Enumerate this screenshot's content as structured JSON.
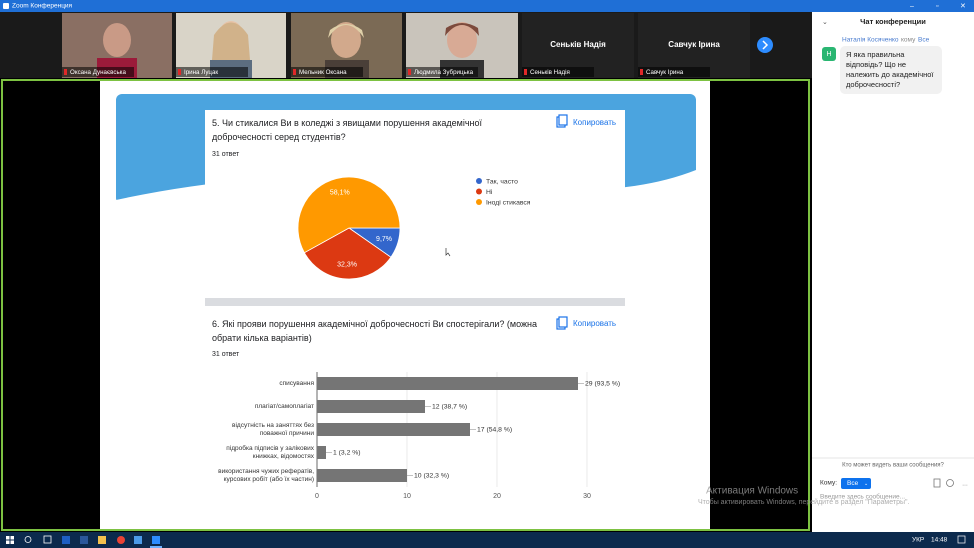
{
  "window_title": "Zoom Конференция",
  "participants": [
    {
      "name": "Оксана Дунаєвська"
    },
    {
      "name": "Ірина Луцак"
    },
    {
      "name": "Мельник Оксана"
    },
    {
      "name": "Людмила Зубрицька"
    },
    {
      "name": "Сеньків Надія"
    },
    {
      "name": "Савчук Ірина"
    }
  ],
  "questions": [
    {
      "title": "5. Чи стикалися Ви в коледжі з явищами порушення академічної доброчесності серед студентів?",
      "responses": "31 ответ",
      "copy_button": "Копировать",
      "chart": {
        "type": "pie",
        "categories": [
          "Так, часто",
          "Ні",
          "Іноді стикався"
        ],
        "values": [
          9.7,
          32.3,
          58.1
        ],
        "value_labels": [
          "9,7%",
          "32,3%",
          "58,1%"
        ],
        "colors": [
          "#3366cc",
          "#dc3912",
          "#ff9900"
        ]
      }
    },
    {
      "title": "6. Які прояви порушення академічної доброчесності Ви спостерігали? (можна обрати кілька варіантів)",
      "responses": "31 ответ",
      "copy_button": "Копировать",
      "chart": {
        "type": "hbar",
        "categories": [
          "списування",
          "плагіат/самоплагіат",
          "відсутність на заняттях без поважної причини",
          "підробка підписів у залікових книжках, відомостях",
          "використання чужих рефератів, курсових робіт (або їх частин)"
        ],
        "values": [
          29,
          12,
          17,
          1,
          10
        ],
        "value_labels": [
          "29 (93,5 %)",
          "12 (38,7 %)",
          "17 (54,8 %)",
          "1 (3,2 %)",
          "10 (32,3 %)"
        ],
        "color": "#757575",
        "xlim": [
          0,
          30
        ],
        "xticks": [
          0,
          10,
          20,
          30
        ],
        "grid": true
      }
    }
  ],
  "chat": {
    "title": "Чат конференции",
    "message": {
      "avatar": "Н",
      "sender": "Наталія Косяченко",
      "to_word": "кому",
      "recipient": "Все",
      "text": "Я яка правильна відповідь? Що не належить до академічної доброчесності?"
    },
    "visibility": "Кто может видеть ваши сообщения?",
    "to_label": "Кому:",
    "to_value": "Все",
    "placeholder": "Введите здесь сообщение..."
  },
  "watermark": {
    "title": "Активация Windows",
    "text": "Чтобы активировать Windows, перейдите в раздел \"Параметры\"."
  },
  "taskbar": {
    "language": "УКР",
    "time": "14:48"
  }
}
